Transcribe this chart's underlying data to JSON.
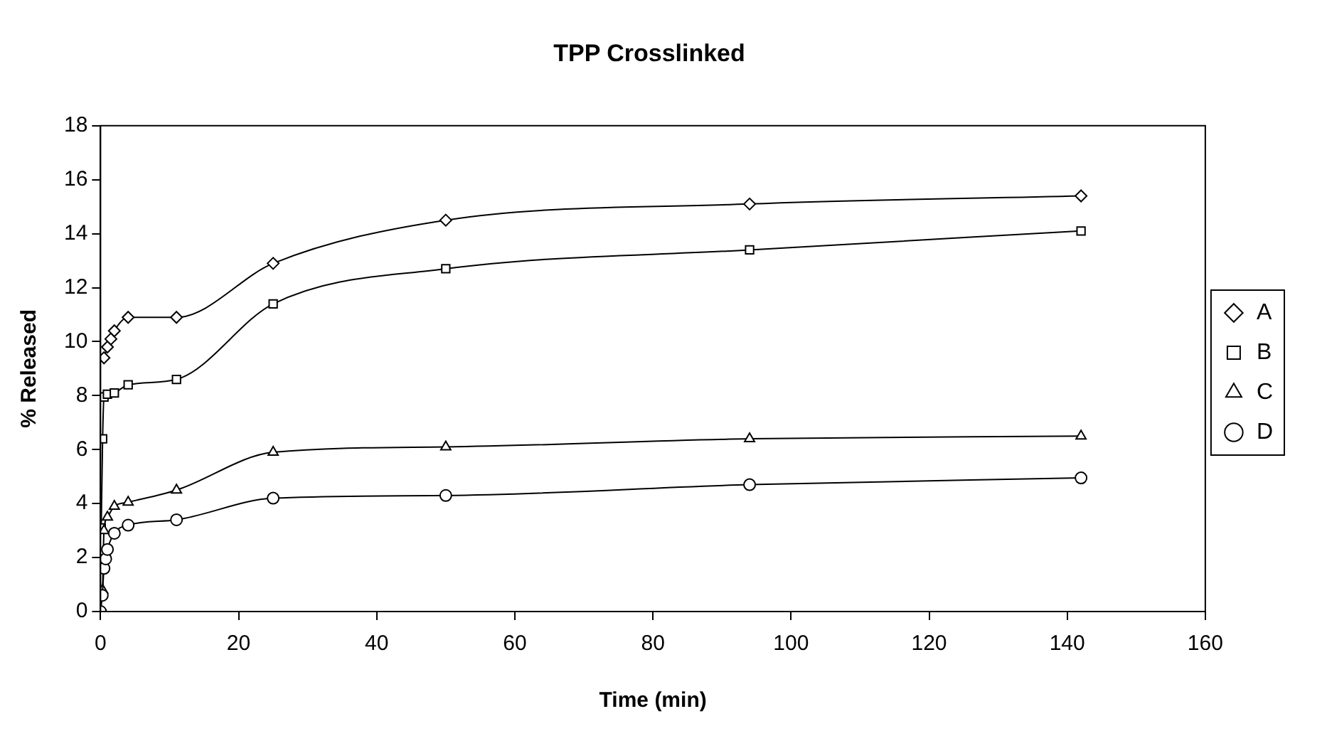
{
  "chart_data": {
    "type": "line",
    "title": "TPP Crosslinked",
    "xlabel": "Time (min)",
    "ylabel": "% Released",
    "xlim": [
      0,
      160
    ],
    "xticks": [
      0,
      20,
      40,
      60,
      80,
      100,
      120,
      140,
      160
    ],
    "ylim": [
      0,
      18
    ],
    "yticks": [
      0,
      2,
      4,
      6,
      8,
      10,
      12,
      14,
      16,
      18
    ],
    "grid": false,
    "legend": "right",
    "line_style": "solid",
    "series": [
      {
        "name": "A",
        "color": "#000000",
        "marker": "diamond",
        "x": [
          0.5,
          1,
          1.5,
          2,
          4,
          11,
          25,
          50,
          94,
          142
        ],
        "values": [
          9.4,
          9.8,
          10.1,
          10.4,
          10.9,
          10.9,
          12.9,
          14.5,
          15.1,
          15.4
        ]
      },
      {
        "name": "B",
        "color": "#000000",
        "marker": "square",
        "x": [
          0.1,
          0.3,
          0.5,
          1,
          2,
          4,
          11,
          25,
          50,
          94,
          142
        ],
        "values": [
          3.1,
          6.4,
          7.95,
          8.05,
          8.1,
          8.4,
          8.6,
          11.4,
          12.7,
          13.4,
          14.1
        ]
      },
      {
        "name": "C",
        "color": "#000000",
        "marker": "triangle",
        "x": [
          0.3,
          0.5,
          1,
          2,
          4,
          11,
          25,
          50,
          94,
          142
        ],
        "values": [
          0.8,
          3.0,
          3.5,
          3.9,
          4.05,
          4.5,
          5.9,
          6.1,
          6.4,
          6.5
        ]
      },
      {
        "name": "D",
        "color": "#000000",
        "marker": "circle",
        "x": [
          0,
          0.25,
          0.5,
          0.75,
          1,
          2,
          4,
          11,
          25,
          50,
          94,
          142
        ],
        "values": [
          0,
          0.6,
          1.6,
          1.95,
          2.3,
          2.9,
          3.2,
          3.4,
          4.2,
          4.3,
          4.7,
          4.95
        ]
      }
    ]
  }
}
